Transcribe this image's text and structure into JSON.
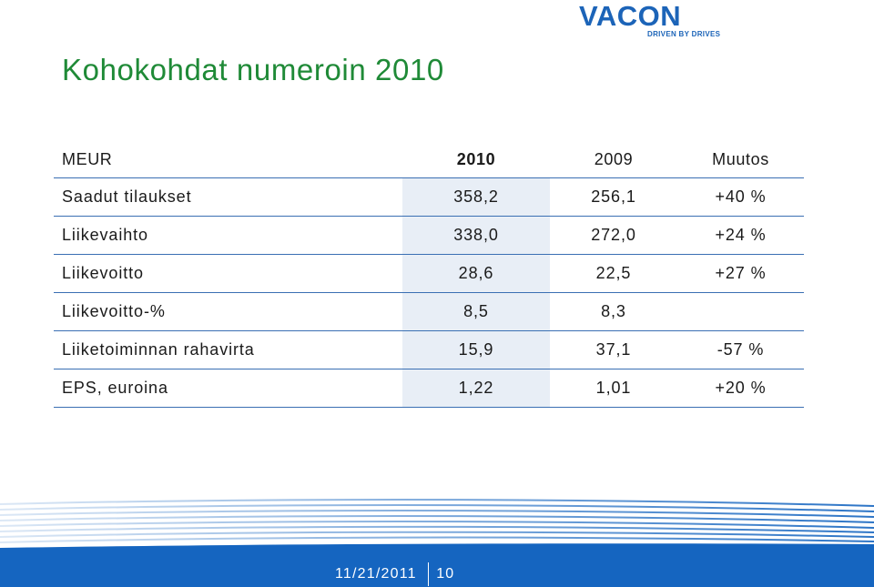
{
  "logo": {
    "word": "VACON",
    "tagline": "DRIVEN BY DRIVES"
  },
  "title": "Kohokohdat numeroin 2010",
  "table": {
    "header": {
      "label": "MEUR",
      "col_2010": "2010",
      "col_2009": "2009",
      "col_change": "Muutos"
    },
    "rows": [
      {
        "label": "Saadut tilaukset",
        "v2010": "358,2",
        "v2009": "256,1",
        "change": "+40 %"
      },
      {
        "label": "Liikevaihto",
        "v2010": "338,0",
        "v2009": "272,0",
        "change": "+24 %"
      },
      {
        "label": "Liikevoitto",
        "v2010": "28,6",
        "v2009": "22,5",
        "change": "+27 %"
      },
      {
        "label": "Liikevoitto-%",
        "v2010": "8,5",
        "v2009": "8,3",
        "change": ""
      },
      {
        "label": "Liiketoiminnan rahavirta",
        "v2010": "15,9",
        "v2009": "37,1",
        "change": "-57 %"
      },
      {
        "label": "EPS, euroina",
        "v2010": "1,22",
        "v2009": "1,01",
        "change": "+20 %"
      }
    ]
  },
  "footer": {
    "date": "11/21/2011",
    "page": "10"
  },
  "colors": {
    "brand_blue": "#1c64b8",
    "title_green": "#1f8a37",
    "rule_blue": "#3a6fb3",
    "highlight_column": "#e8eef6",
    "footer_blue": "#1565c0"
  }
}
